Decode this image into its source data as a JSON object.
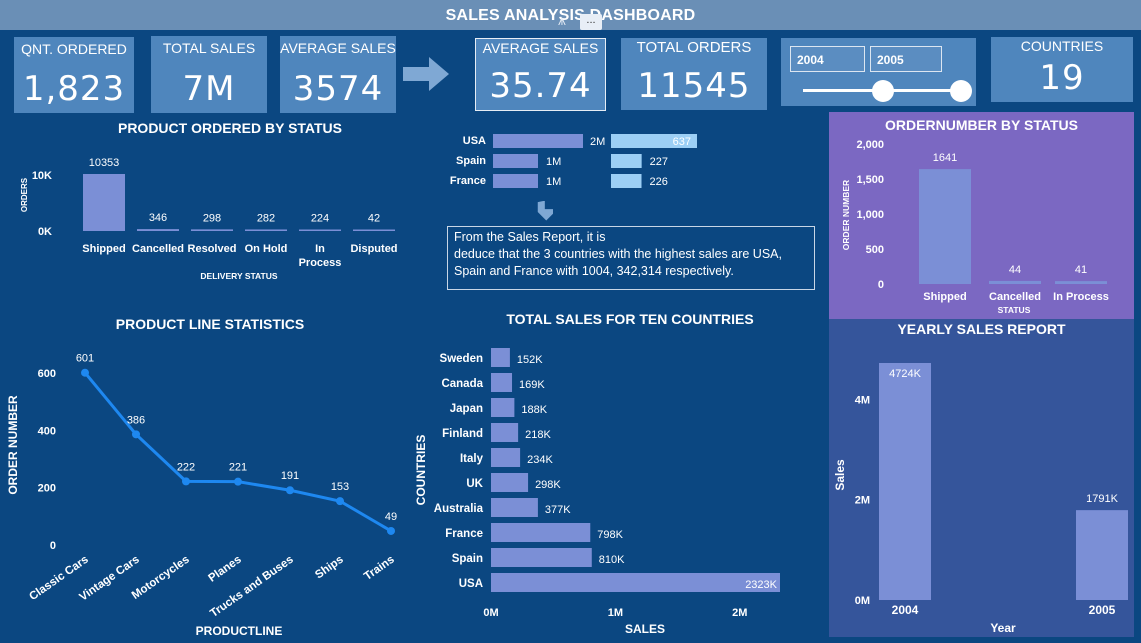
{
  "header": {
    "title": "SALES ANALYSIS DASHBOARD",
    "filter_icon": "filter-icon",
    "more_icon": "more-options-icon",
    "more_label": "..."
  },
  "kpis": [
    {
      "label": "QNT. ORDERED",
      "value": "1,823"
    },
    {
      "label": "TOTAL SALES",
      "value": "7M"
    },
    {
      "label": "AVERAGE SALES",
      "value": "3574"
    },
    {
      "label": "AVERAGE SALES",
      "value": "35.74"
    },
    {
      "label": "TOTAL ORDERS",
      "value": "11545"
    },
    {
      "label": "COUNTRIES",
      "value": "19"
    }
  ],
  "year_slider": {
    "start": "2004",
    "end": "2005",
    "start_fraction": 0.5,
    "end_fraction": 1.0
  },
  "note": {
    "lines": [
      "From the Sales Report, it is",
      "deduce that  the 3  countries with the highest sales are USA,",
      "Spain and France with  1004, 342,314 respectively."
    ]
  },
  "colors": {
    "background": "#0b4781",
    "bar": "#7b8fd6",
    "line": "#1e88f0",
    "kpi": "#4f86bd",
    "purple_panel": "#7b68c2",
    "yearly_panel": "#35559b"
  },
  "chart_data": [
    {
      "id": "status",
      "type": "bar",
      "title": "PRODUCT ORDERED BY STATUS",
      "xlabel": "DELIVERY STATUS",
      "ylabel": "ORDERS",
      "categories": [
        "Shipped",
        "Cancelled",
        "Resolved",
        "On Hold",
        "In Process",
        "Disputed"
      ],
      "values": [
        10353,
        346,
        298,
        282,
        224,
        42
      ],
      "data_labels": [
        "10353",
        "346",
        "298",
        "282",
        "224",
        "42"
      ],
      "yticks": [
        "0K",
        "10K"
      ],
      "ylim": [
        0,
        10353
      ]
    },
    {
      "id": "top3",
      "type": "bar",
      "orientation": "horizontal",
      "categories": [
        "USA",
        "Spain",
        "France"
      ],
      "series": [
        {
          "values": [
            2000000,
            1000000,
            1000000
          ],
          "labels": [
            "2M",
            "1M",
            "1M"
          ]
        },
        {
          "values": [
            637,
            227,
            226
          ],
          "labels": [
            "637",
            "227",
            "226"
          ]
        }
      ]
    },
    {
      "id": "ordernumber",
      "type": "bar",
      "title": "ORDERNUMBER BY STATUS",
      "xlabel": "STATUS",
      "ylabel": "ORDER NUMBER",
      "categories": [
        "Shipped",
        "Cancelled",
        "In Process"
      ],
      "values": [
        1641,
        44,
        41
      ],
      "data_labels": [
        "1641",
        "44",
        "41"
      ],
      "yticks": [
        "0",
        "500",
        "1,000",
        "1,500",
        "2,000"
      ],
      "ylim": [
        0,
        2000
      ]
    },
    {
      "id": "productline",
      "type": "line",
      "title": "PRODUCT LINE STATISTICS",
      "xlabel": "PRODUCTLINE",
      "ylabel": "ORDER NUMBER",
      "categories": [
        "Classic Cars",
        "Vintage Cars",
        "Motorcycles",
        "Planes",
        "Trucks and Buses",
        "Ships",
        "Trains"
      ],
      "values": [
        601,
        386,
        222,
        221,
        191,
        153,
        49
      ],
      "data_labels": [
        "601",
        "386",
        "222",
        "221",
        "191",
        "153",
        "49"
      ],
      "yticks": [
        "0",
        "200",
        "400",
        "600"
      ],
      "ylim": [
        0,
        600
      ]
    },
    {
      "id": "countries",
      "type": "bar",
      "orientation": "horizontal",
      "title": "TOTAL SALES FOR TEN COUNTRIES",
      "xlabel": "SALES",
      "ylabel": "COUNTRIES",
      "categories": [
        "Sweden",
        "Canada",
        "Japan",
        "Finland",
        "Italy",
        "UK",
        "Australia",
        "France",
        "Spain",
        "USA"
      ],
      "values": [
        152000,
        169000,
        188000,
        218000,
        234000,
        298000,
        377000,
        798000,
        810000,
        2323000
      ],
      "data_labels": [
        "152K",
        "169K",
        "188K",
        "218K",
        "234K",
        "298K",
        "377K",
        "798K",
        "810K",
        "2323K"
      ],
      "xticks": [
        "0M",
        "1M",
        "2M"
      ],
      "xlim": [
        0,
        2323000
      ]
    },
    {
      "id": "yearly",
      "type": "bar",
      "title": "YEARLY SALES REPORT",
      "xlabel": "Year",
      "ylabel": "Sales",
      "categories": [
        "2004",
        "2005"
      ],
      "values": [
        4724000,
        1791000
      ],
      "data_labels": [
        "4724K",
        "1791K"
      ],
      "yticks": [
        "0M",
        "2M",
        "4M"
      ],
      "ylim": [
        0,
        4724000
      ]
    }
  ]
}
